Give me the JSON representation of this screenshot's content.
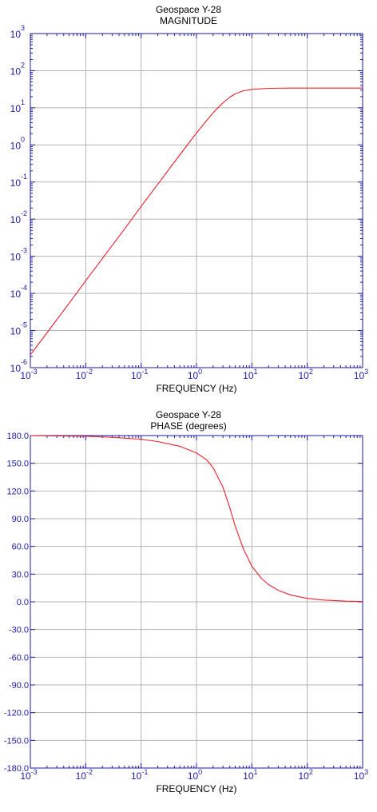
{
  "chart_data": [
    {
      "type": "line",
      "title": "Geospace Y-28",
      "subtitle": "MAGNITUDE",
      "xlabel": "FREQUENCY (Hz)",
      "ylabel": "",
      "xscale": "log",
      "yscale": "log",
      "xlim": [
        0.001,
        1000
      ],
      "ylim": [
        1e-06,
        1000
      ],
      "grid": true,
      "x_ticks": [
        {
          "base": "10",
          "exp": "-3"
        },
        {
          "base": "10",
          "exp": "-2"
        },
        {
          "base": "10",
          "exp": "-1"
        },
        {
          "base": "10",
          "exp": "0"
        },
        {
          "base": "10",
          "exp": "1"
        },
        {
          "base": "10",
          "exp": "2"
        },
        {
          "base": "10",
          "exp": "3"
        }
      ],
      "y_ticks": [
        {
          "base": "10",
          "exp": "3"
        },
        {
          "base": "10",
          "exp": "2"
        },
        {
          "base": "10",
          "exp": "1"
        },
        {
          "base": "10",
          "exp": "0"
        },
        {
          "base": "10",
          "exp": "-1"
        },
        {
          "base": "10",
          "exp": "-2"
        },
        {
          "base": "10",
          "exp": "-3"
        },
        {
          "base": "10",
          "exp": "-4"
        },
        {
          "base": "10",
          "exp": "-5"
        },
        {
          "base": "10",
          "exp": "-6"
        }
      ],
      "series": [
        {
          "color": "#e8202a",
          "x": [
            0.001,
            0.002,
            0.005,
            0.01,
            0.02,
            0.05,
            0.1,
            0.2,
            0.5,
            1,
            2,
            3,
            4,
            5,
            7,
            10,
            20,
            50,
            100,
            200,
            500,
            1000
          ],
          "y": [
            2.2e-06,
            8.7e-06,
            5.4e-05,
            0.00022,
            0.00087,
            0.0054,
            0.022,
            0.087,
            0.54,
            2.1,
            7.4,
            13.6,
            19.3,
            23.8,
            28.7,
            31.4,
            33.5,
            34.0,
            34.0,
            34.0,
            34.0,
            34.0
          ]
        }
      ]
    },
    {
      "type": "line",
      "title": "Geospace Y-28",
      "subtitle": "PHASE (degrees)",
      "xlabel": "FREQUENCY (Hz)",
      "ylabel": "",
      "xscale": "log",
      "yscale": "linear",
      "xlim": [
        0.001,
        1000
      ],
      "ylim": [
        -180,
        180
      ],
      "grid": true,
      "x_ticks": [
        {
          "base": "10",
          "exp": "-3"
        },
        {
          "base": "10",
          "exp": "-2"
        },
        {
          "base": "10",
          "exp": "-1"
        },
        {
          "base": "10",
          "exp": "0"
        },
        {
          "base": "10",
          "exp": "1"
        },
        {
          "base": "10",
          "exp": "2"
        },
        {
          "base": "10",
          "exp": "3"
        }
      ],
      "y_ticks": [
        "180.0",
        "150.0",
        "120.0",
        "90.0",
        "60.0",
        "30.0",
        "0.0",
        "-30.0",
        "-60.0",
        "-90.0",
        "-120.0",
        "-150.0",
        "-180.0"
      ],
      "series": [
        {
          "color": "#e8202a",
          "x": [
            0.001,
            0.01,
            0.03,
            0.1,
            0.2,
            0.5,
            1,
            1.5,
            2,
            3,
            4,
            5,
            7,
            10,
            15,
            20,
            30,
            50,
            100,
            200,
            500,
            1000
          ],
          "y": [
            179.9,
            179.3,
            178.1,
            176.0,
            173.5,
            168.4,
            161.2,
            154.0,
            145.2,
            124.2,
            101.8,
            82.0,
            57.5,
            38.5,
            25.1,
            18.7,
            12.4,
            7.4,
            3.7,
            1.9,
            0.7,
            0.4
          ]
        }
      ]
    }
  ]
}
